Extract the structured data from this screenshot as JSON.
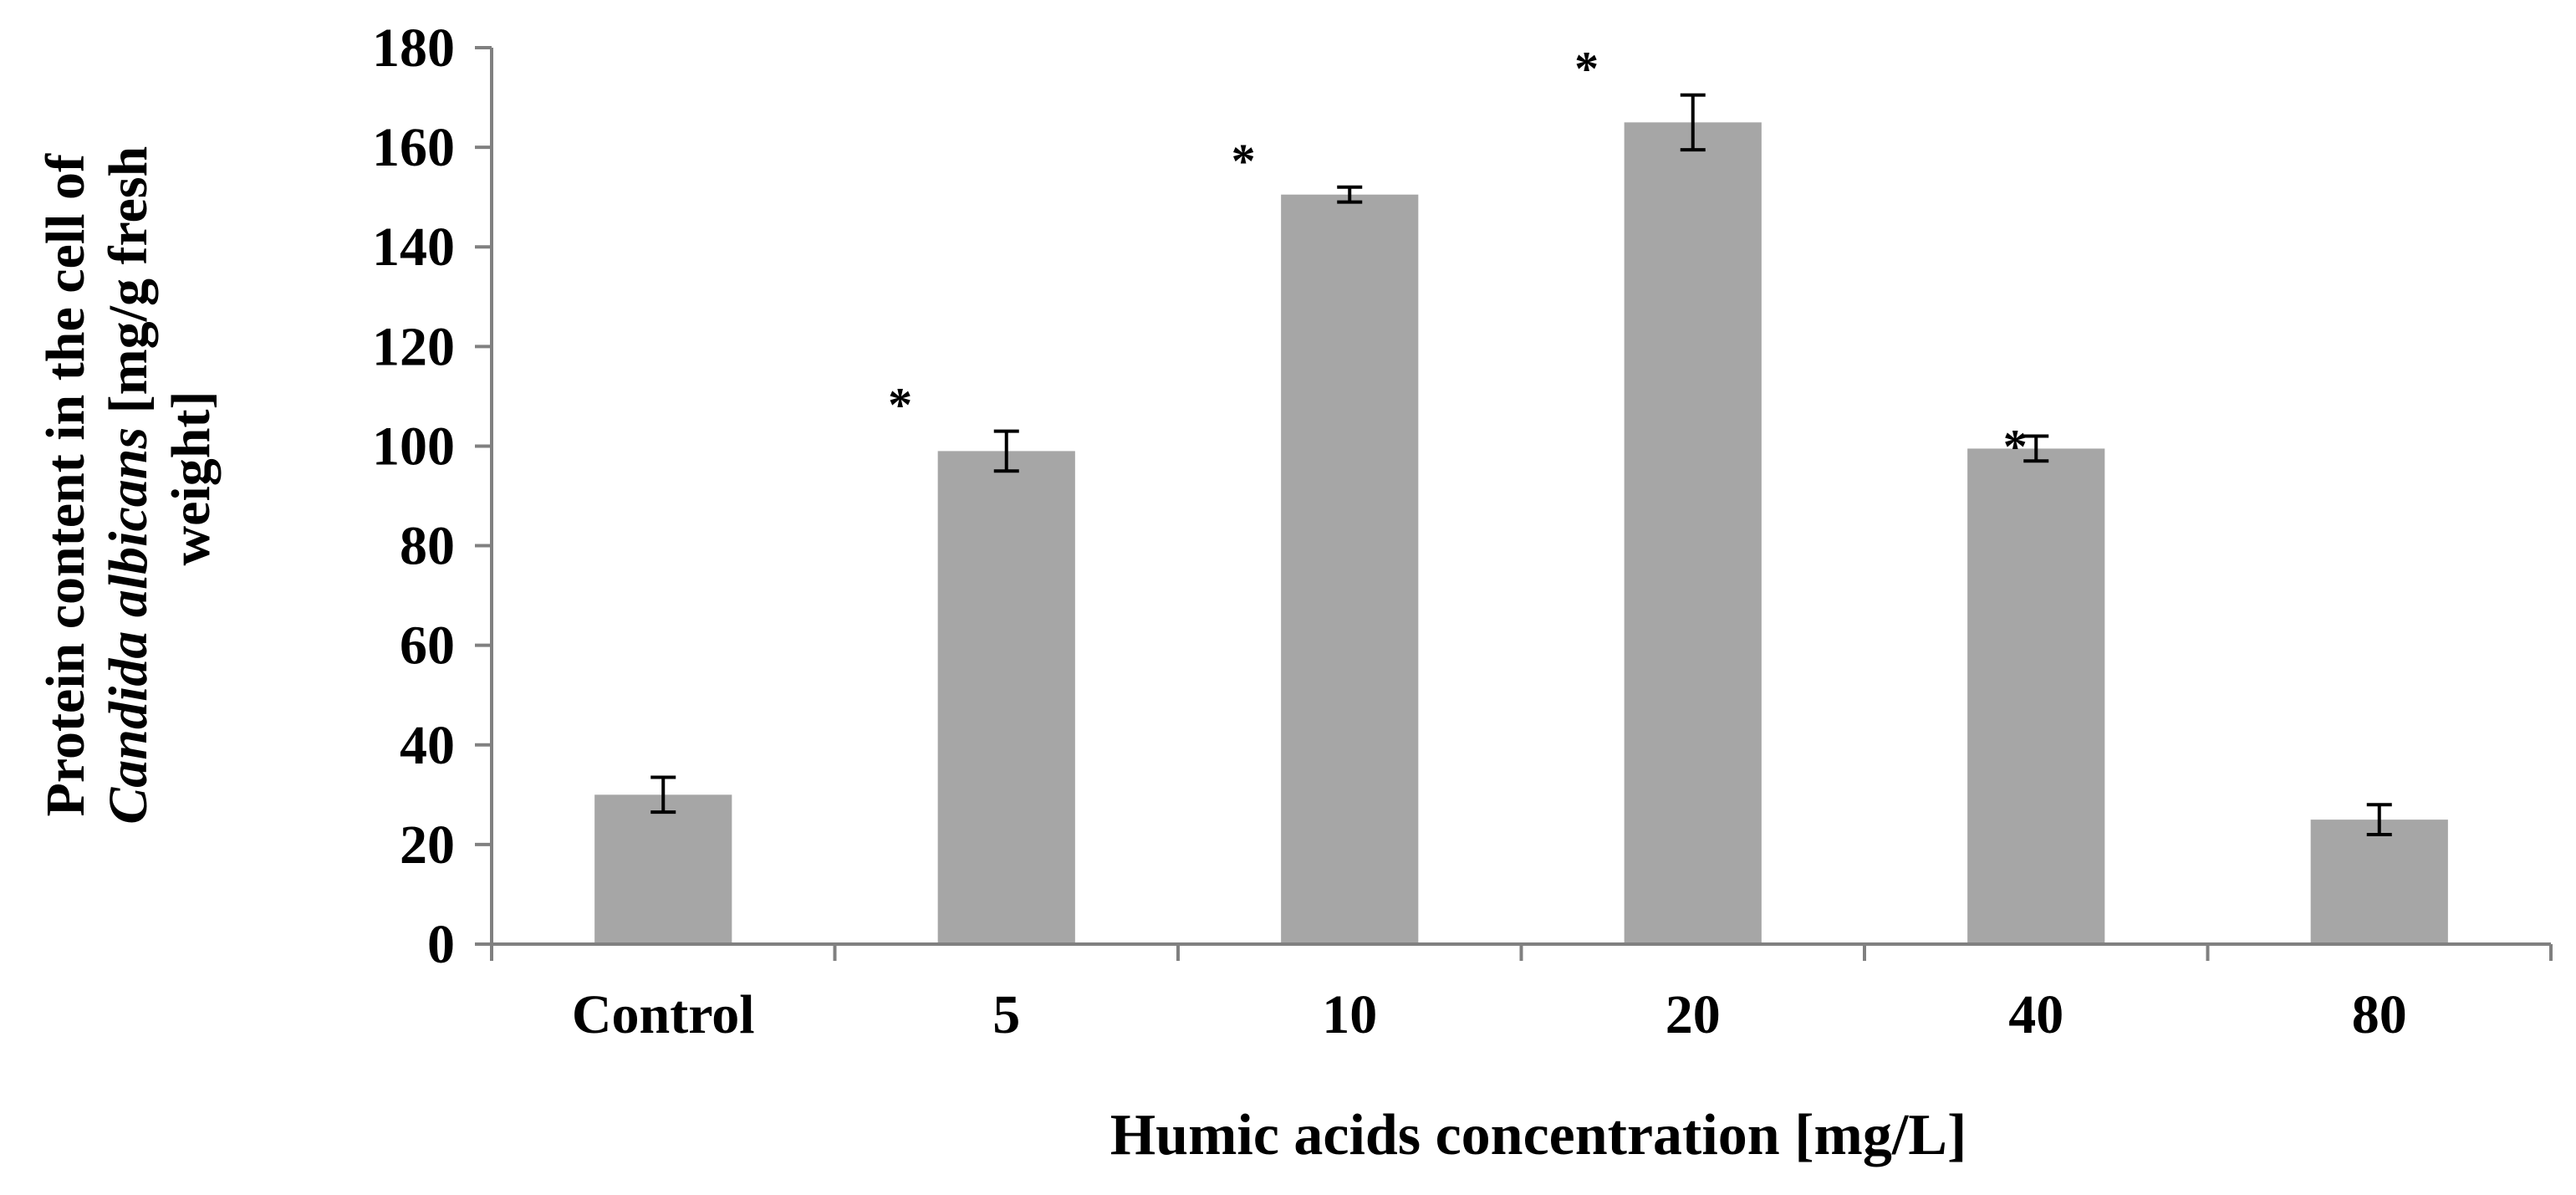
{
  "colors": {
    "bar": "#a6a6a6",
    "axis": "#808080",
    "text": "#000000",
    "errorbar": "#000000"
  },
  "chart_data": {
    "type": "bar",
    "title": "",
    "xlabel": "Humic acids concentration [mg/L]",
    "ylabel_parts": [
      {
        "text": "Protein content in the cell of",
        "italic": false
      },
      {
        "text": "Candida albicans",
        "italic": true
      },
      {
        "text": " [mg/g fresh",
        "italic": false
      },
      {
        "text": "weight]",
        "italic": false
      }
    ],
    "categories": [
      "Control",
      "5",
      "10",
      "20",
      "40",
      "80"
    ],
    "values": [
      30,
      99,
      150.5,
      165,
      99.5,
      25
    ],
    "errors": [
      3.5,
      4,
      1.5,
      5.5,
      2.5,
      3
    ],
    "significance": [
      "",
      "*",
      "*",
      "*",
      "*",
      ""
    ],
    "ylim": [
      0,
      180
    ],
    "yticks": [
      0,
      20,
      40,
      60,
      80,
      100,
      120,
      140,
      160,
      180
    ],
    "grid": false,
    "legend": "none"
  }
}
